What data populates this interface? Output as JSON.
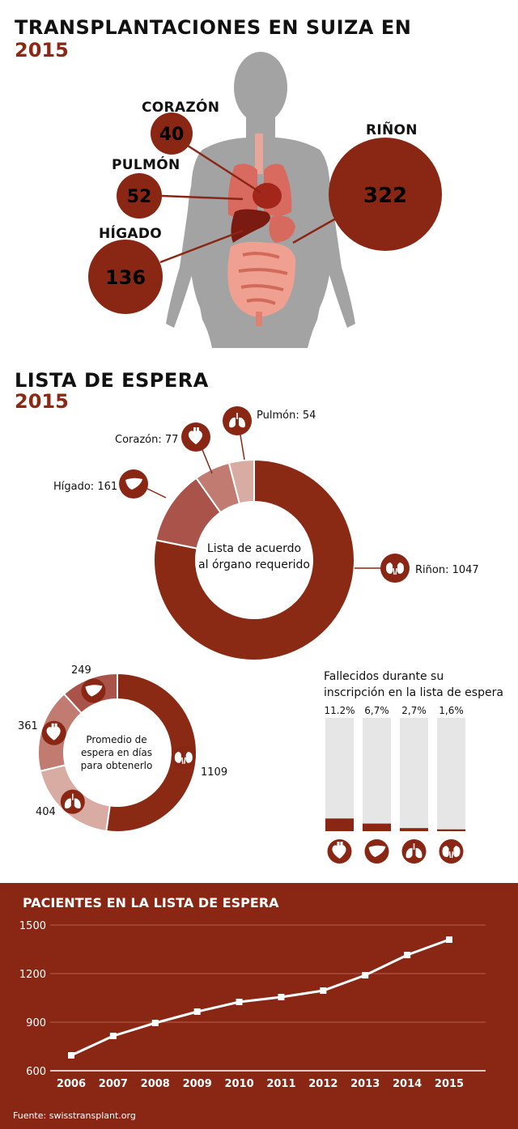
{
  "section1": {
    "title": "TRANSPLANTACIONES EN SUIZA EN",
    "year": "2015",
    "organs": [
      {
        "id": "corazon",
        "label": "CORAZÓN",
        "value": "40"
      },
      {
        "id": "pulmon",
        "label": "PULMÓN",
        "value": "52"
      },
      {
        "id": "higado",
        "label": "HÍGADO",
        "value": "136"
      },
      {
        "id": "rinon",
        "label": "RIÑON",
        "value": "322"
      }
    ]
  },
  "section2": {
    "title": "LISTA DE ESPERA",
    "year": "2015",
    "center_label_1": "Lista de acuerdo",
    "center_label_2": "al órgano requerido",
    "labels": {
      "pulmon": "Pulmón: 54",
      "corazon": "Corazón: 77",
      "higado": "Hígado: 161",
      "rinon": "Riñon: 1047"
    }
  },
  "section3": {
    "center_1": "Promedio de",
    "center_2": "espera en días",
    "center_3": "para obtenerlo",
    "labels": {
      "higado": "249",
      "corazon": "361",
      "pulmon": "404",
      "rinon": "1109"
    }
  },
  "section4": {
    "title_1": "Fallecidos durante su",
    "title_2": "inscripción en la lista de espera",
    "bars": [
      {
        "organ": "corazón",
        "label": "11.2%",
        "value": 11.2,
        "icon": "heart-icon"
      },
      {
        "organ": "hígado",
        "label": "6,7%",
        "value": 6.7,
        "icon": "liver-icon"
      },
      {
        "organ": "pulmón",
        "label": "2,7%",
        "value": 2.7,
        "icon": "lungs-icon"
      },
      {
        "organ": "riñon",
        "label": "1,6%",
        "value": 1.6,
        "icon": "kidney-icon"
      }
    ]
  },
  "section5": {
    "title": "PACIENTES EN LA LISTA DE ESPERA",
    "source": "Fuente: swisstransplant.org"
  },
  "colors": {
    "brand": "#8a2714",
    "kidney": "#8b2a14",
    "liver": "#a9534a",
    "heart": "#c27b70",
    "lung": "#d8aba3",
    "bar_bg": "#e6e6e6",
    "body": "#9a9a9a"
  },
  "chart_data": [
    {
      "type": "pie",
      "title": "Lista de acuerdo al órgano requerido",
      "categories": [
        "Riñon",
        "Hígado",
        "Corazón",
        "Pulmón"
      ],
      "values": [
        1047,
        161,
        77,
        54
      ]
    },
    {
      "type": "pie",
      "title": "Promedio de espera en días para obtenerlo",
      "categories": [
        "Riñon",
        "Pulmón",
        "Corazón",
        "Hígado"
      ],
      "values": [
        1109,
        404,
        361,
        249
      ]
    },
    {
      "type": "bar",
      "title": "Fallecidos durante su inscripción en la lista de espera",
      "categories": [
        "Corazón",
        "Hígado",
        "Pulmón",
        "Riñon"
      ],
      "values": [
        11.2,
        6.7,
        2.7,
        1.6
      ],
      "ylim": [
        0,
        100
      ]
    },
    {
      "type": "line",
      "title": "PACIENTES EN LA LISTA DE ESPERA",
      "x": [
        "2006",
        "2007",
        "2008",
        "2009",
        "2010",
        "2011",
        "2012",
        "2013",
        "2014",
        "2015"
      ],
      "y": [
        695,
        815,
        895,
        965,
        1025,
        1055,
        1095,
        1190,
        1315,
        1410
      ],
      "ylim": [
        600,
        1500
      ],
      "yticks": [
        "600",
        "900",
        "1200",
        "1500"
      ],
      "grid": true
    }
  ]
}
